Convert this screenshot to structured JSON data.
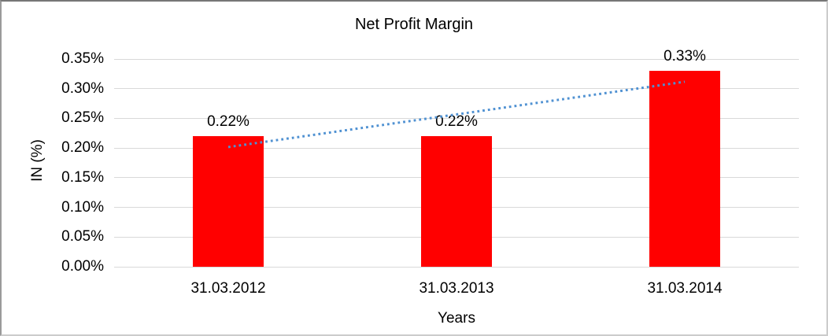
{
  "chart_data": {
    "type": "bar",
    "title": "Net Profit Margin",
    "xlabel": "Years",
    "ylabel": "IN (%)",
    "categories": [
      "31.03.2012",
      "31.03.2013",
      "31.03.2014"
    ],
    "values": [
      0.22,
      0.22,
      0.33
    ],
    "data_labels": [
      "0.22%",
      "0.22%",
      "0.33%"
    ],
    "ytick_labels": [
      "0.00%",
      "0.05%",
      "0.10%",
      "0.15%",
      "0.20%",
      "0.25%",
      "0.30%",
      "0.35%"
    ],
    "ytick_step": 0.05,
    "ylim": [
      0,
      0.35
    ],
    "grid": true,
    "legend": "none",
    "bar_color": "#FF0000",
    "gridline_color": "#D9D9D9",
    "text_color": "#000000",
    "trendline": {
      "type": "linear",
      "style": "dotted",
      "color": "#4F91D2"
    }
  }
}
